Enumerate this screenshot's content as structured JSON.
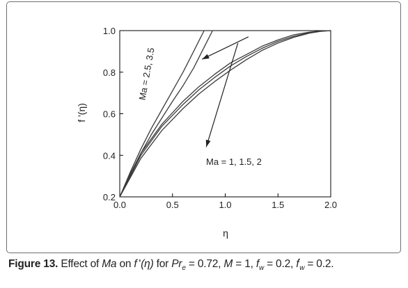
{
  "chart_data": {
    "type": "line",
    "xlabel": "η",
    "ylabel": "f '(η)",
    "xlim": [
      0.0,
      2.0
    ],
    "ylim": [
      0.2,
      1.0
    ],
    "x_ticks": [
      "0.0",
      "0.5",
      "1.0",
      "1.5",
      "2.0"
    ],
    "y_ticks": [
      "0.2",
      "0.4",
      "0.6",
      "0.8",
      "1.0"
    ],
    "grid": false,
    "series": [
      {
        "x": [
          0,
          0.2,
          0.4,
          0.6,
          0.75,
          0.9,
          1.05,
          1.2,
          1.35,
          1.5,
          1.65,
          1.8,
          1.9,
          2.0
        ],
        "y": [
          0.2,
          0.41,
          0.55,
          0.66,
          0.73,
          0.79,
          0.845,
          0.885,
          0.925,
          0.955,
          0.98,
          0.993,
          0.998,
          1.0
        ]
      },
      {
        "x": [
          0,
          0.2,
          0.4,
          0.6,
          0.75,
          0.9,
          1.05,
          1.2,
          1.35,
          1.5,
          1.65,
          1.8,
          1.9,
          2.0
        ],
        "y": [
          0.2,
          0.4,
          0.54,
          0.645,
          0.715,
          0.775,
          0.83,
          0.875,
          0.915,
          0.948,
          0.973,
          0.99,
          0.997,
          1.0
        ]
      },
      {
        "x": [
          0,
          0.2,
          0.4,
          0.6,
          0.75,
          0.9,
          1.05,
          1.2,
          1.35,
          1.5,
          1.65,
          1.8,
          1.9,
          2.0
        ],
        "y": [
          0.2,
          0.385,
          0.52,
          0.625,
          0.695,
          0.755,
          0.81,
          0.86,
          0.905,
          0.94,
          0.968,
          0.988,
          0.996,
          1.0
        ]
      },
      {
        "x": [
          0,
          0.1,
          0.2,
          0.3,
          0.4,
          0.5,
          0.6,
          0.65,
          0.7,
          0.75,
          0.8
        ],
        "y": [
          0.2,
          0.32,
          0.43,
          0.53,
          0.62,
          0.71,
          0.8,
          0.85,
          0.9,
          0.95,
          1.0
        ]
      },
      {
        "x": [
          0,
          0.1,
          0.2,
          0.3,
          0.4,
          0.5,
          0.6,
          0.7,
          0.76,
          0.82,
          0.88
        ],
        "y": [
          0.2,
          0.31,
          0.41,
          0.5,
          0.58,
          0.66,
          0.735,
          0.82,
          0.88,
          0.94,
          1.0
        ]
      }
    ],
    "annotations": [
      {
        "text": "Ma = 2.5, 3.5",
        "arrow_from": [
          1.22,
          0.97
        ],
        "arrow_to": [
          0.78,
          0.862
        ]
      },
      {
        "text": "Ma = 1, 1.5, 2",
        "arrow_from": [
          1.12,
          0.94
        ],
        "arrow_to": [
          0.82,
          0.44
        ]
      }
    ]
  },
  "caption": {
    "label": "Figure 13.",
    "text_effect_of": "Effect of",
    "ma_symbol": "Ma",
    "text_on": "on",
    "f_symbol": "f",
    "f_arg": "(η)",
    "text_for": "for",
    "pr_symbol": "Pr",
    "pr_sub": "e",
    "pr_value": "= 0.72,",
    "m_symbol": "M",
    "m_value": "= 1,",
    "fw_symbol": "f",
    "fw_sub": "w",
    "fw_value": "= 0.2,",
    "fwp_symbol": "f",
    "fwp_sub": "w",
    "fwp_value": "= 0.2."
  },
  "colors": {
    "line": "#3a3a3a",
    "axis": "#000000",
    "text": "#222222",
    "frame": "#6f6f6f"
  }
}
